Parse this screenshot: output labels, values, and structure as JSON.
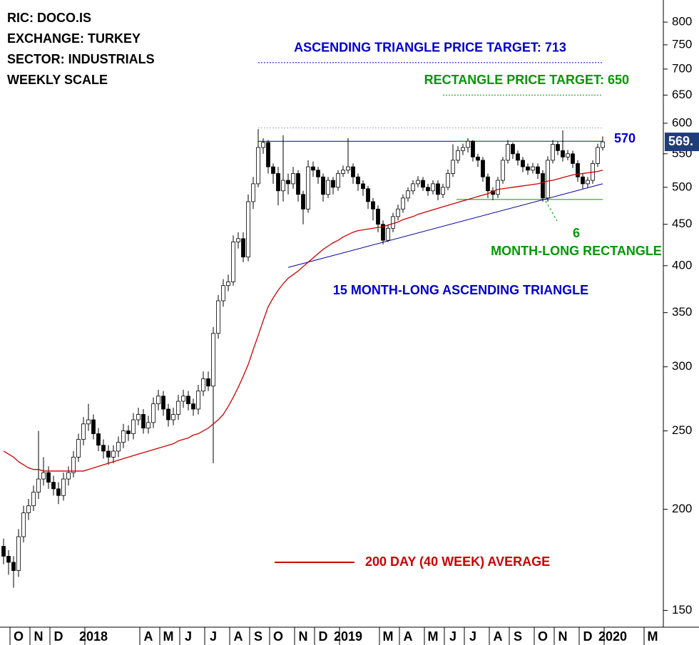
{
  "chart_data": {
    "type": "candlestick",
    "header_lines": [
      "RIC: DOCO.IS",
      "EXCHANGE: TURKEY",
      "SECTOR: INDUSTRIALS",
      "WEEKLY SCALE"
    ],
    "log_scale": true,
    "ylim": [
      143,
      852
    ],
    "yticks": [
      150,
      200,
      250,
      300,
      350,
      400,
      450,
      500,
      550,
      600,
      650,
      700,
      750,
      800
    ],
    "xticks": [
      {
        "value": 3,
        "label": "O"
      },
      {
        "value": 7,
        "label": "N"
      },
      {
        "value": 11,
        "label": "D"
      },
      {
        "value": 18,
        "label": "2018"
      },
      {
        "value": 29,
        "label": "A"
      },
      {
        "value": 33,
        "label": "M"
      },
      {
        "value": 37,
        "label": "J"
      },
      {
        "value": 42,
        "label": "J"
      },
      {
        "value": 47,
        "label": "A"
      },
      {
        "value": 51,
        "label": "S"
      },
      {
        "value": 55,
        "label": "O"
      },
      {
        "value": 60,
        "label": "N"
      },
      {
        "value": 64,
        "label": "D"
      },
      {
        "value": 69,
        "label": "2019"
      },
      {
        "value": 77,
        "label": "M"
      },
      {
        "value": 81,
        "label": "A"
      },
      {
        "value": 86,
        "label": "M"
      },
      {
        "value": 90,
        "label": "J"
      },
      {
        "value": 94,
        "label": "J"
      },
      {
        "value": 99,
        "label": "A"
      },
      {
        "value": 103,
        "label": "S"
      },
      {
        "value": 108,
        "label": "O"
      },
      {
        "value": 112,
        "label": "N"
      },
      {
        "value": 117,
        "label": "D"
      },
      {
        "value": 122,
        "label": "2020"
      },
      {
        "value": 130,
        "label": "M"
      }
    ],
    "open": [
      180,
      175,
      172,
      168,
      185,
      198,
      202,
      210,
      218,
      222,
      216,
      212,
      208,
      218,
      222,
      232,
      244,
      255,
      258,
      248,
      240,
      236,
      232,
      236,
      242,
      250,
      248,
      258,
      262,
      252,
      256,
      270,
      276,
      266,
      258,
      262,
      272,
      276,
      270,
      266,
      280,
      290,
      284,
      330,
      362,
      378,
      382,
      428,
      432,
      410,
      480,
      505,
      560,
      568,
      530,
      520,
      495,
      510,
      505,
      520,
      490,
      470,
      530,
      525,
      515,
      490,
      510,
      500,
      520,
      525,
      530,
      515,
      505,
      498,
      480,
      470,
      450,
      430,
      445,
      460,
      470,
      485,
      495,
      505,
      510,
      500,
      495,
      505,
      490,
      500,
      520,
      540,
      555,
      560,
      570,
      545,
      540,
      515,
      495,
      490,
      510,
      540,
      565,
      550,
      540,
      530,
      525,
      530,
      520,
      485,
      540,
      565,
      555,
      545,
      550,
      535,
      515,
      505,
      510,
      535,
      560
    ],
    "high": [
      184,
      178,
      175,
      189,
      202,
      206,
      214,
      250,
      232,
      226,
      220,
      216,
      222,
      226,
      236,
      248,
      260,
      270,
      262,
      252,
      244,
      240,
      240,
      246,
      255,
      254,
      263,
      267,
      266,
      261,
      275,
      281,
      280,
      270,
      267,
      277,
      281,
      280,
      274,
      285,
      296,
      296,
      336,
      368,
      385,
      390,
      436,
      440,
      440,
      490,
      515,
      590,
      575,
      572,
      535,
      530,
      580,
      520,
      530,
      525,
      495,
      540,
      538,
      530,
      520,
      515,
      515,
      525,
      532,
      575,
      535,
      520,
      510,
      502,
      485,
      475,
      455,
      450,
      465,
      476,
      490,
      500,
      510,
      516,
      515,
      505,
      510,
      510,
      505,
      526,
      565,
      562,
      566,
      575,
      572,
      550,
      545,
      520,
      500,
      515,
      545,
      572,
      568,
      555,
      545,
      535,
      536,
      535,
      525,
      546,
      572,
      570,
      588,
      556,
      555,
      540,
      520,
      515,
      540,
      566,
      578
    ],
    "low": [
      171,
      166,
      160,
      165,
      182,
      194,
      199,
      206,
      214,
      212,
      208,
      203,
      205,
      214,
      219,
      229,
      240,
      250,
      244,
      236,
      231,
      227,
      228,
      232,
      238,
      243,
      244,
      254,
      248,
      248,
      252,
      265,
      261,
      253,
      254,
      258,
      267,
      265,
      261,
      262,
      276,
      280,
      228,
      325,
      356,
      372,
      378,
      420,
      404,
      405,
      470,
      500,
      550,
      520,
      505,
      475,
      480,
      490,
      498,
      480,
      450,
      465,
      515,
      505,
      480,
      485,
      490,
      495,
      515,
      520,
      505,
      495,
      488,
      470,
      455,
      440,
      425,
      428,
      440,
      455,
      465,
      480,
      490,
      500,
      495,
      488,
      490,
      482,
      485,
      496,
      515,
      535,
      548,
      552,
      538,
      530,
      508,
      485,
      482,
      485,
      505,
      535,
      542,
      532,
      522,
      518,
      520,
      512,
      480,
      480,
      535,
      548,
      538,
      540,
      528,
      508,
      498,
      500,
      505,
      530,
      555
    ],
    "close": [
      175,
      172,
      168,
      185,
      198,
      202,
      210,
      218,
      222,
      216,
      212,
      208,
      218,
      222,
      232,
      244,
      255,
      258,
      248,
      240,
      236,
      232,
      236,
      242,
      250,
      248,
      258,
      262,
      252,
      256,
      270,
      276,
      266,
      258,
      262,
      272,
      276,
      270,
      266,
      280,
      290,
      284,
      330,
      362,
      378,
      382,
      428,
      432,
      410,
      480,
      505,
      560,
      568,
      530,
      520,
      495,
      510,
      505,
      520,
      490,
      470,
      530,
      525,
      515,
      490,
      510,
      500,
      520,
      525,
      530,
      515,
      505,
      498,
      480,
      470,
      450,
      430,
      445,
      460,
      470,
      485,
      495,
      505,
      510,
      500,
      495,
      505,
      490,
      500,
      520,
      540,
      555,
      560,
      570,
      545,
      540,
      515,
      495,
      490,
      510,
      540,
      565,
      550,
      540,
      530,
      525,
      530,
      520,
      485,
      540,
      565,
      555,
      545,
      550,
      535,
      515,
      505,
      510,
      535,
      560,
      569
    ],
    "moving_average": {
      "name": "200 DAY (40 WEEK) AVERAGE",
      "color": "#cc0000",
      "values": [
        236,
        234,
        232,
        229,
        227,
        225,
        224,
        224,
        223,
        223,
        223,
        223,
        223,
        223,
        223,
        223,
        223,
        224,
        225,
        226,
        227,
        228,
        229,
        230,
        231,
        232,
        233,
        234,
        235,
        236,
        237,
        238,
        239,
        240,
        241,
        243,
        244,
        245,
        247,
        248,
        250,
        252,
        255,
        258,
        262,
        268,
        275,
        283,
        292,
        302,
        315,
        328,
        342,
        356,
        365,
        373,
        380,
        386,
        390,
        394,
        399,
        404,
        409,
        414,
        419,
        423,
        427,
        430,
        434,
        437,
        440,
        442,
        443,
        444,
        445,
        446,
        447,
        449,
        451,
        453,
        456,
        458,
        460,
        463,
        465,
        467,
        469,
        471,
        473,
        475,
        477,
        479,
        481,
        483,
        485,
        487,
        489,
        491,
        494,
        497,
        498,
        499,
        500,
        501,
        502,
        503,
        504,
        505,
        507,
        509,
        510,
        512,
        514,
        516,
        518,
        519,
        520,
        521,
        522,
        523,
        525
      ]
    },
    "last_price_label": "569.",
    "targets": [
      {
        "text": "ASCENDING TRIANGLE PRICE TARGET: 713",
        "value": 713,
        "from": 51,
        "to": 120,
        "color": "#0000cc"
      },
      {
        "text": "RECTANGLE PRICE TARGET: 650",
        "value": 650,
        "from": 88,
        "to": 120,
        "color": "#009900"
      }
    ],
    "resistance": {
      "text": "570",
      "value": 570,
      "from": 51,
      "to": 120,
      "color": "#000099"
    },
    "range_high": {
      "value": 592,
      "from": 51,
      "to": 120,
      "color": "#aaaaaa"
    },
    "rectangle": {
      "text": "6 MONTH-LONG RECTANGLE",
      "top": 570,
      "bottom": 483,
      "from": 91,
      "to": 120,
      "color": "#009900"
    },
    "triangle": {
      "text": "15 MONTH-LONG ASCENDING TRIANGLE",
      "from": [
        57,
        398
      ],
      "to": [
        120,
        505
      ],
      "color": "#000099"
    }
  }
}
